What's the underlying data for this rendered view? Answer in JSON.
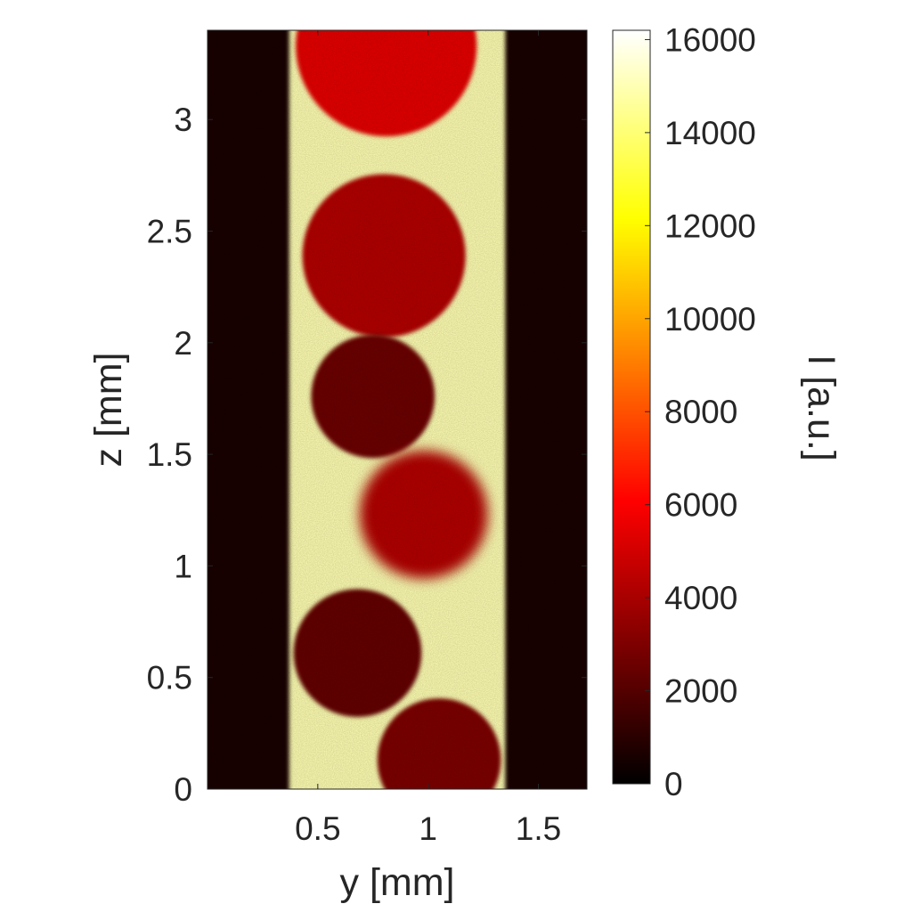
{
  "chart_data": {
    "type": "heatmap",
    "xlabel": "y [mm]",
    "ylabel": "z [mm]",
    "colorbar_label": "I [a.u.]",
    "xlim": [
      0,
      1.72
    ],
    "ylim": [
      0,
      3.4
    ],
    "clim": [
      0,
      16200
    ],
    "colormap": "hot",
    "x_ticks": [
      0.5,
      1,
      1.5
    ],
    "x_tick_labels": [
      "0.5",
      "1",
      "1.5"
    ],
    "y_ticks": [
      0,
      0.5,
      1,
      1.5,
      2,
      2.5,
      3
    ],
    "y_tick_labels": [
      "0",
      "0.5",
      "1",
      "1.5",
      "2",
      "2.5",
      "3"
    ],
    "colorbar_ticks": [
      0,
      2000,
      4000,
      6000,
      8000,
      10000,
      12000,
      14000,
      16000
    ],
    "colorbar_tick_labels": [
      "0",
      "2000",
      "4000",
      "6000",
      "8000",
      "10000",
      "12000",
      "14000",
      "16000"
    ],
    "background_intensity": 600,
    "channel": {
      "y_min": 0.37,
      "y_max": 1.35,
      "intensity": 15000
    },
    "droplets": [
      {
        "y": 0.81,
        "z": 3.33,
        "r": 0.41,
        "intensity": 5500
      },
      {
        "y": 0.8,
        "z": 2.39,
        "r": 0.37,
        "intensity": 4300
      },
      {
        "y": 0.75,
        "z": 1.76,
        "r": 0.28,
        "intensity": 2600
      },
      {
        "y": 0.98,
        "z": 1.23,
        "r": 0.29,
        "intensity": 4300
      },
      {
        "y": 0.68,
        "z": 0.61,
        "r": 0.29,
        "intensity": 2400
      },
      {
        "y": 1.05,
        "z": 0.13,
        "r": 0.28,
        "intensity": 3000
      }
    ]
  }
}
